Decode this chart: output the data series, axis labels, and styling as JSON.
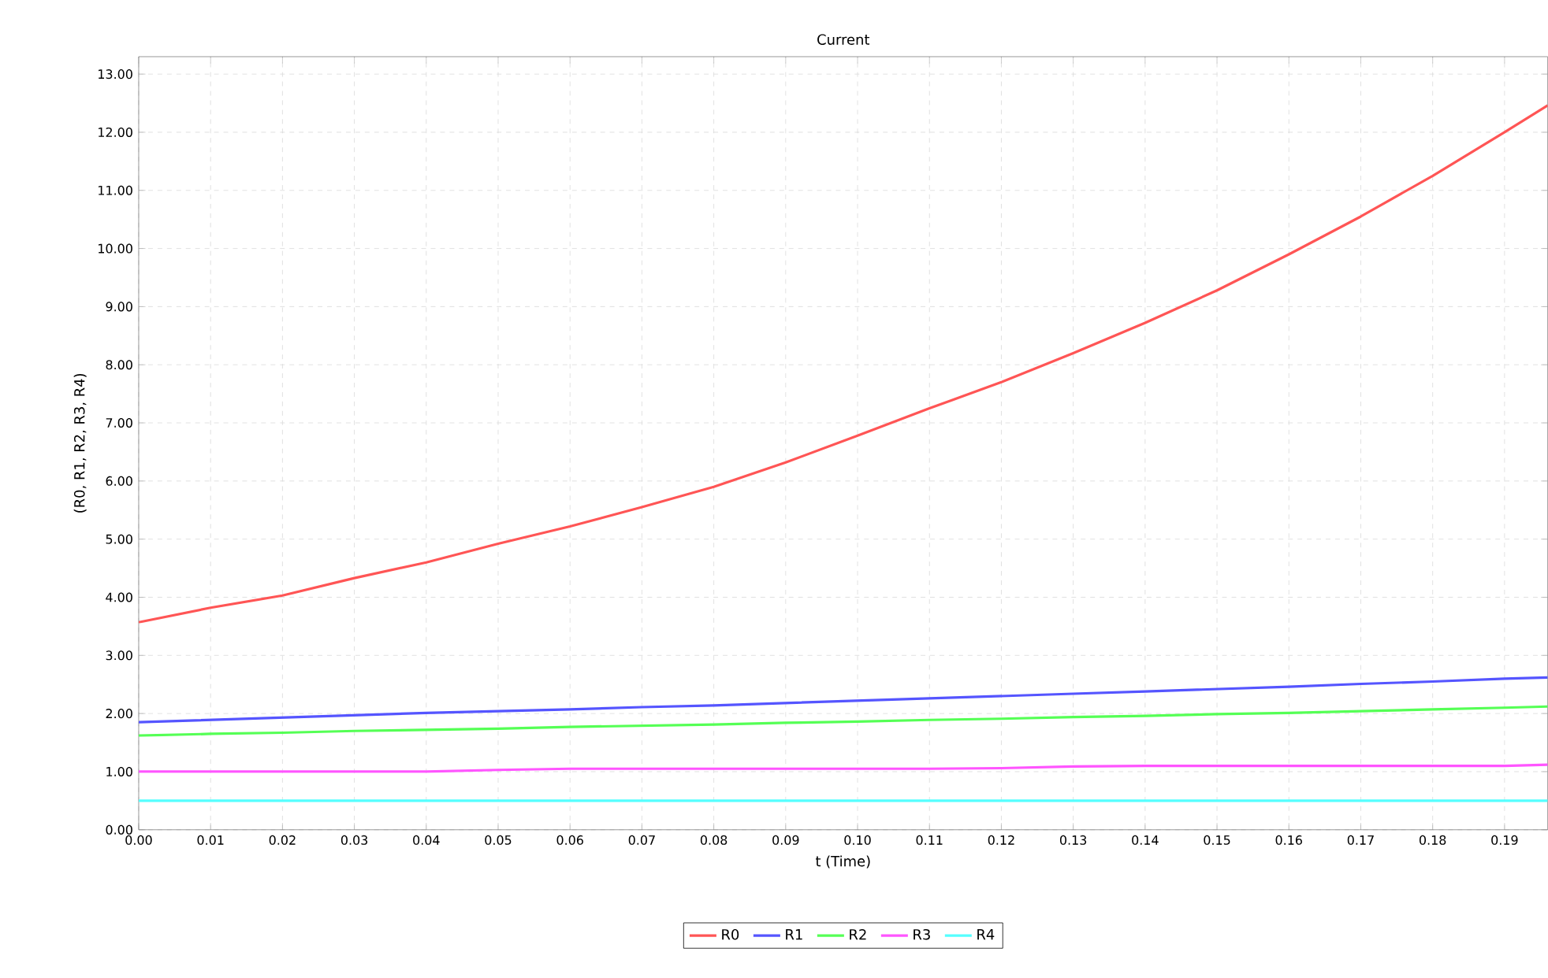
{
  "chart_data": {
    "type": "line",
    "title": "Current",
    "xlabel": "t (Time)",
    "ylabel": "(R0, R1, R2, R3, R4)",
    "x": [
      0,
      0.01,
      0.02,
      0.03,
      0.04,
      0.05,
      0.06,
      0.07,
      0.08,
      0.09,
      0.1,
      0.11,
      0.12,
      0.13,
      0.14,
      0.15,
      0.16,
      0.17,
      0.18,
      0.19,
      0.196
    ],
    "series": [
      {
        "name": "R0",
        "color": "#ff5555",
        "values": [
          3.57,
          3.82,
          4.03,
          4.33,
          4.6,
          4.92,
          5.22,
          5.55,
          5.9,
          6.32,
          6.78,
          7.25,
          7.7,
          8.2,
          8.72,
          9.28,
          9.9,
          10.55,
          11.25,
          12.0,
          12.46
        ]
      },
      {
        "name": "R1",
        "color": "#5555ff",
        "values": [
          1.85,
          1.89,
          1.93,
          1.97,
          2.01,
          2.04,
          2.07,
          2.11,
          2.14,
          2.18,
          2.22,
          2.26,
          2.3,
          2.34,
          2.38,
          2.42,
          2.46,
          2.51,
          2.55,
          2.6,
          2.62
        ]
      },
      {
        "name": "R2",
        "color": "#55ff55",
        "values": [
          1.62,
          1.65,
          1.67,
          1.7,
          1.72,
          1.74,
          1.77,
          1.79,
          1.81,
          1.84,
          1.86,
          1.89,
          1.91,
          1.94,
          1.96,
          1.99,
          2.01,
          2.04,
          2.07,
          2.1,
          2.12
        ]
      },
      {
        "name": "R3",
        "color": "#ff55ff",
        "values": [
          1.0,
          1.0,
          1.0,
          1.0,
          1.0,
          1.03,
          1.05,
          1.05,
          1.05,
          1.05,
          1.05,
          1.05,
          1.06,
          1.09,
          1.1,
          1.1,
          1.1,
          1.1,
          1.1,
          1.1,
          1.12
        ]
      },
      {
        "name": "R4",
        "color": "#55ffff",
        "values": [
          0.5,
          0.5,
          0.5,
          0.5,
          0.5,
          0.5,
          0.5,
          0.5,
          0.5,
          0.5,
          0.5,
          0.5,
          0.5,
          0.5,
          0.5,
          0.5,
          0.5,
          0.5,
          0.5,
          0.5,
          0.5
        ]
      }
    ],
    "xlim": [
      0,
      0.196
    ],
    "xticks": [
      {
        "value": 0,
        "label": "0.00"
      },
      {
        "value": 0.01,
        "label": "0.01"
      },
      {
        "value": 0.02,
        "label": "0.02"
      },
      {
        "value": 0.03,
        "label": "0.03"
      },
      {
        "value": 0.04,
        "label": "0.04"
      },
      {
        "value": 0.05,
        "label": "0.05"
      },
      {
        "value": 0.06,
        "label": "0.06"
      },
      {
        "value": 0.07,
        "label": "0.07"
      },
      {
        "value": 0.08,
        "label": "0.08"
      },
      {
        "value": 0.09,
        "label": "0.09"
      },
      {
        "value": 0.1,
        "label": "0.10"
      },
      {
        "value": 0.11,
        "label": "0.11"
      },
      {
        "value": 0.12,
        "label": "0.12"
      },
      {
        "value": 0.13,
        "label": "0.13"
      },
      {
        "value": 0.14,
        "label": "0.14"
      },
      {
        "value": 0.15,
        "label": "0.15"
      },
      {
        "value": 0.16,
        "label": "0.16"
      },
      {
        "value": 0.17,
        "label": "0.17"
      },
      {
        "value": 0.18,
        "label": "0.18"
      },
      {
        "value": 0.19,
        "label": "0.19"
      }
    ],
    "ylim": [
      0,
      13.3
    ],
    "yticks": [
      {
        "value": 0,
        "label": "0.00"
      },
      {
        "value": 1,
        "label": "1.00"
      },
      {
        "value": 2,
        "label": "2.00"
      },
      {
        "value": 3,
        "label": "3.00"
      },
      {
        "value": 4,
        "label": "4.00"
      },
      {
        "value": 5,
        "label": "5.00"
      },
      {
        "value": 6,
        "label": "6.00"
      },
      {
        "value": 7,
        "label": "7.00"
      },
      {
        "value": 8,
        "label": "8.00"
      },
      {
        "value": 9,
        "label": "9.00"
      },
      {
        "value": 10,
        "label": "10.00"
      },
      {
        "value": 11,
        "label": "11.00"
      },
      {
        "value": 12,
        "label": "12.00"
      },
      {
        "value": 13,
        "label": "13.00"
      }
    ],
    "grid": true,
    "legend": "bottom",
    "marker": "none",
    "line_style": "solid"
  }
}
